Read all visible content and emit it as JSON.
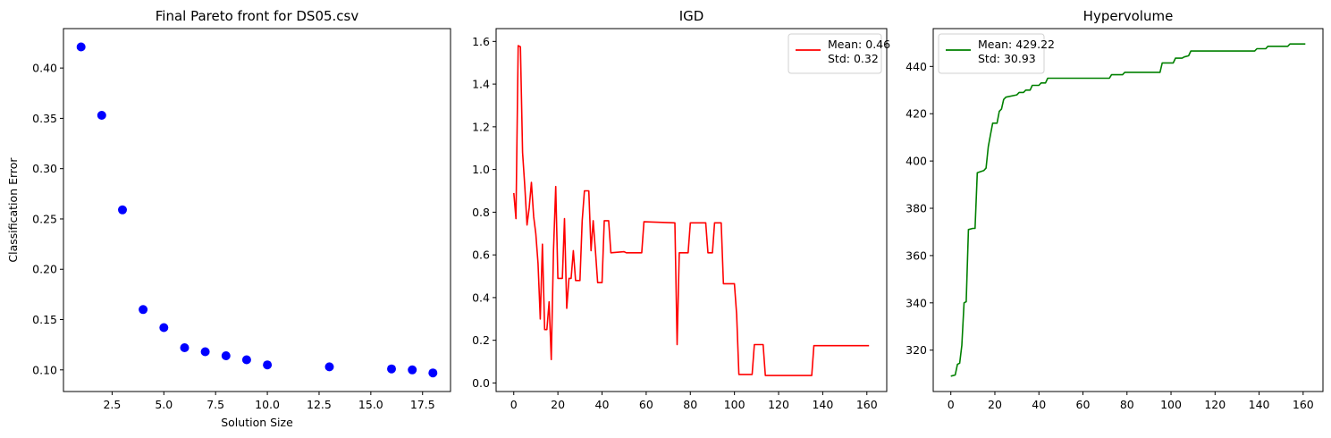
{
  "chart_data": [
    {
      "type": "scatter",
      "title": "Final Pareto front for DS05.csv",
      "xlabel": "Solution Size",
      "ylabel": "Classification Error",
      "xlim": [
        0.15,
        18.85
      ],
      "ylim": [
        0.0785,
        0.4392
      ],
      "xticks": [
        2.5,
        5.0,
        7.5,
        10.0,
        12.5,
        15.0,
        17.5
      ],
      "xtick_labels": [
        "2.5",
        "5.0",
        "7.5",
        "10.0",
        "12.5",
        "15.0",
        "17.5"
      ],
      "yticks": [
        0.1,
        0.15,
        0.2,
        0.25,
        0.3,
        0.35,
        0.4
      ],
      "ytick_labels": [
        "0.10",
        "0.15",
        "0.20",
        "0.25",
        "0.30",
        "0.35",
        "0.40"
      ],
      "color": "#0000ff",
      "points": [
        [
          1,
          0.421
        ],
        [
          2,
          0.353
        ],
        [
          3,
          0.259
        ],
        [
          4,
          0.16
        ],
        [
          5,
          0.142
        ],
        [
          6,
          0.122
        ],
        [
          7,
          0.118
        ],
        [
          8,
          0.114
        ],
        [
          9,
          0.11
        ],
        [
          10,
          0.105
        ],
        [
          13,
          0.103
        ],
        [
          16,
          0.101
        ],
        [
          17,
          0.1
        ],
        [
          18,
          0.097
        ]
      ]
    },
    {
      "type": "line",
      "title": "IGD",
      "xlabel": "",
      "ylabel": "",
      "xlim": [
        -8,
        169
      ],
      "ylim": [
        -0.04,
        1.66
      ],
      "xticks": [
        0,
        20,
        40,
        60,
        80,
        100,
        120,
        140,
        160
      ],
      "xtick_labels": [
        "0",
        "20",
        "40",
        "60",
        "80",
        "100",
        "120",
        "140",
        "160"
      ],
      "yticks": [
        0.0,
        0.2,
        0.4,
        0.6,
        0.8,
        1.0,
        1.2,
        1.4,
        1.6
      ],
      "ytick_labels": [
        "0.0",
        "0.2",
        "0.4",
        "0.6",
        "0.8",
        "1.0",
        "1.2",
        "1.4",
        "1.6"
      ],
      "color": "#ff0000",
      "legend": {
        "position": "upper right",
        "lines": [
          "Mean: 0.46",
          "Std: 0.32"
        ]
      },
      "points": [
        [
          0,
          0.89
        ],
        [
          1,
          0.77
        ],
        [
          2,
          1.58
        ],
        [
          3,
          1.575
        ],
        [
          4,
          1.08
        ],
        [
          5,
          0.92
        ],
        [
          6,
          0.74
        ],
        [
          7,
          0.82
        ],
        [
          8,
          0.94
        ],
        [
          9,
          0.78
        ],
        [
          10,
          0.7
        ],
        [
          11,
          0.56
        ],
        [
          12,
          0.3
        ],
        [
          13,
          0.65
        ],
        [
          14,
          0.25
        ],
        [
          15,
          0.25
        ],
        [
          16,
          0.38
        ],
        [
          17,
          0.11
        ],
        [
          18,
          0.62
        ],
        [
          19,
          0.92
        ],
        [
          20,
          0.49
        ],
        [
          22,
          0.49
        ],
        [
          23,
          0.77
        ],
        [
          24,
          0.35
        ],
        [
          25,
          0.49
        ],
        [
          26,
          0.49
        ],
        [
          27,
          0.62
        ],
        [
          28,
          0.48
        ],
        [
          30,
          0.48
        ],
        [
          31,
          0.76
        ],
        [
          32,
          0.9
        ],
        [
          34,
          0.9
        ],
        [
          35,
          0.62
        ],
        [
          36,
          0.76
        ],
        [
          37,
          0.62
        ],
        [
          38,
          0.47
        ],
        [
          40,
          0.47
        ],
        [
          41,
          0.76
        ],
        [
          43,
          0.76
        ],
        [
          44,
          0.61
        ],
        [
          50,
          0.615
        ],
        [
          51,
          0.61
        ],
        [
          58,
          0.61
        ],
        [
          59,
          0.755
        ],
        [
          73,
          0.75
        ],
        [
          74,
          0.18
        ],
        [
          75,
          0.61
        ],
        [
          79,
          0.61
        ],
        [
          80,
          0.75
        ],
        [
          87,
          0.75
        ],
        [
          88,
          0.61
        ],
        [
          90,
          0.61
        ],
        [
          91,
          0.75
        ],
        [
          94,
          0.75
        ],
        [
          95,
          0.465
        ],
        [
          100,
          0.465
        ],
        [
          101,
          0.32
        ],
        [
          102,
          0.04
        ],
        [
          108,
          0.04
        ],
        [
          109,
          0.18
        ],
        [
          113,
          0.18
        ],
        [
          114,
          0.035
        ],
        [
          135,
          0.035
        ],
        [
          136,
          0.175
        ],
        [
          161,
          0.175
        ]
      ]
    },
    {
      "type": "line",
      "title": "Hypervolume",
      "xlabel": "",
      "ylabel": "",
      "xlim": [
        -8,
        169
      ],
      "ylim": [
        302.5,
        456
      ],
      "xticks": [
        0,
        20,
        40,
        60,
        80,
        100,
        120,
        140,
        160
      ],
      "xtick_labels": [
        "0",
        "20",
        "40",
        "60",
        "80",
        "100",
        "120",
        "140",
        "160"
      ],
      "yticks": [
        320,
        340,
        360,
        380,
        400,
        420,
        440
      ],
      "ytick_labels": [
        "320",
        "340",
        "360",
        "380",
        "400",
        "420",
        "440"
      ],
      "color": "#008000",
      "legend": {
        "position": "upper left",
        "lines": [
          "Mean: 429.22",
          "Std: 30.93"
        ]
      },
      "points": [
        [
          0,
          309
        ],
        [
          2,
          309.5
        ],
        [
          3,
          314
        ],
        [
          4,
          314.5
        ],
        [
          5,
          322
        ],
        [
          6,
          340
        ],
        [
          7,
          340.5
        ],
        [
          8,
          371
        ],
        [
          10,
          371.5
        ],
        [
          11,
          371.5
        ],
        [
          12,
          395
        ],
        [
          15,
          396
        ],
        [
          16,
          397
        ],
        [
          17,
          406
        ],
        [
          18,
          411
        ],
        [
          19,
          416
        ],
        [
          21,
          416
        ],
        [
          22,
          421
        ],
        [
          23,
          422
        ],
        [
          24,
          426
        ],
        [
          25,
          427
        ],
        [
          30,
          428
        ],
        [
          31,
          429
        ],
        [
          33,
          429
        ],
        [
          34,
          430
        ],
        [
          36,
          430
        ],
        [
          37,
          432
        ],
        [
          40,
          432
        ],
        [
          41,
          433
        ],
        [
          43,
          433
        ],
        [
          44,
          435
        ],
        [
          72,
          435
        ],
        [
          73,
          436.5
        ],
        [
          78,
          436.5
        ],
        [
          79,
          437.5
        ],
        [
          95,
          437.5
        ],
        [
          96,
          441.5
        ],
        [
          101,
          441.5
        ],
        [
          102,
          443.5
        ],
        [
          105,
          443.5
        ],
        [
          106,
          444
        ],
        [
          108,
          444.5
        ],
        [
          109,
          446.5
        ],
        [
          138,
          446.5
        ],
        [
          139,
          447.5
        ],
        [
          143,
          447.5
        ],
        [
          144,
          448.5
        ],
        [
          153,
          448.5
        ],
        [
          154,
          449.5
        ],
        [
          161,
          449.5
        ]
      ]
    }
  ]
}
